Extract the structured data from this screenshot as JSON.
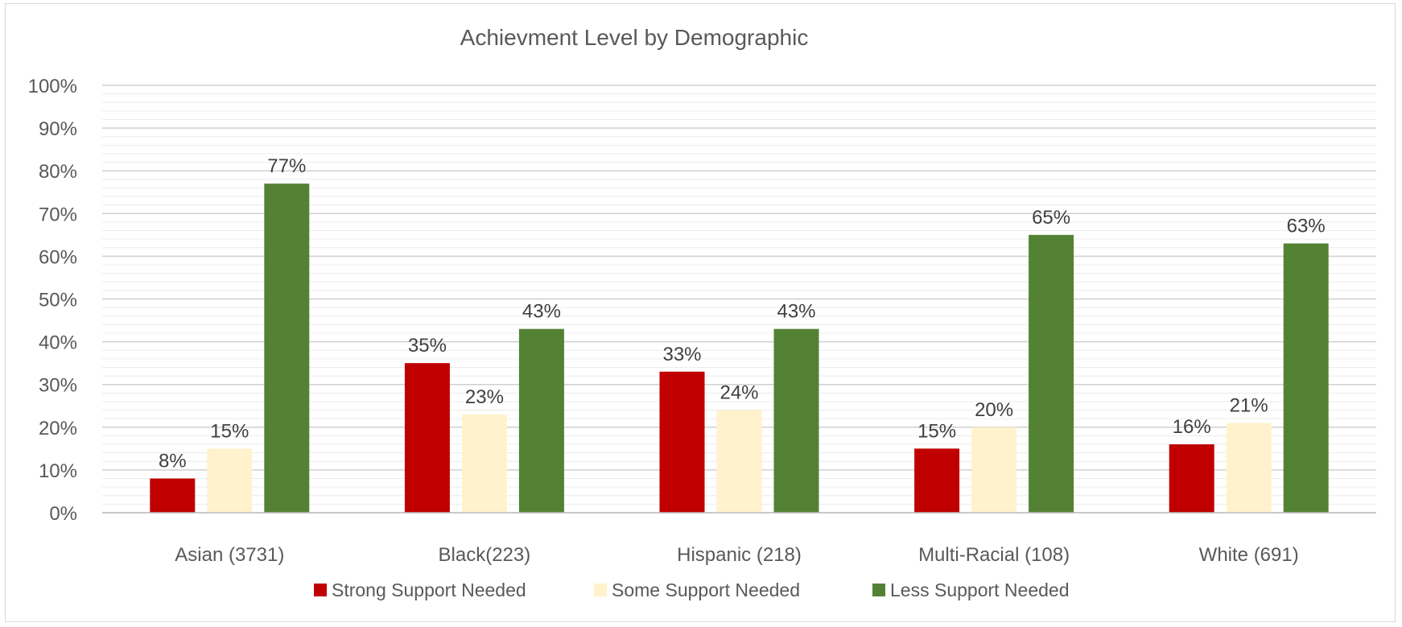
{
  "chart_data": {
    "type": "bar",
    "title": "Achievment Level by Demographic",
    "xlabel": "",
    "ylabel": "",
    "ylim": [
      0,
      100
    ],
    "y_ticks": [
      "0%",
      "10%",
      "20%",
      "30%",
      "40%",
      "50%",
      "60%",
      "70%",
      "80%",
      "90%",
      "100%"
    ],
    "grid": true,
    "legend_position": "bottom",
    "categories": [
      "Asian (3731)",
      "Black(223)",
      "Hispanic (218)",
      "Multi-Racial (108)",
      "White (691)"
    ],
    "series": [
      {
        "name": "Strong Support Needed",
        "color": "#c00000",
        "values": [
          8,
          35,
          33,
          15,
          16
        ],
        "labels": [
          "8%",
          "35%",
          "33%",
          "15%",
          "16%"
        ]
      },
      {
        "name": "Some Support Needed",
        "color": "#fff2cc",
        "values": [
          15,
          23,
          24,
          20,
          21
        ],
        "labels": [
          "15%",
          "23%",
          "24%",
          "20%",
          "21%"
        ]
      },
      {
        "name": "Less Support Needed",
        "color": "#548235",
        "values": [
          77,
          43,
          43,
          65,
          63
        ],
        "labels": [
          "77%",
          "43%",
          "43%",
          "65%",
          "63%"
        ]
      }
    ]
  }
}
